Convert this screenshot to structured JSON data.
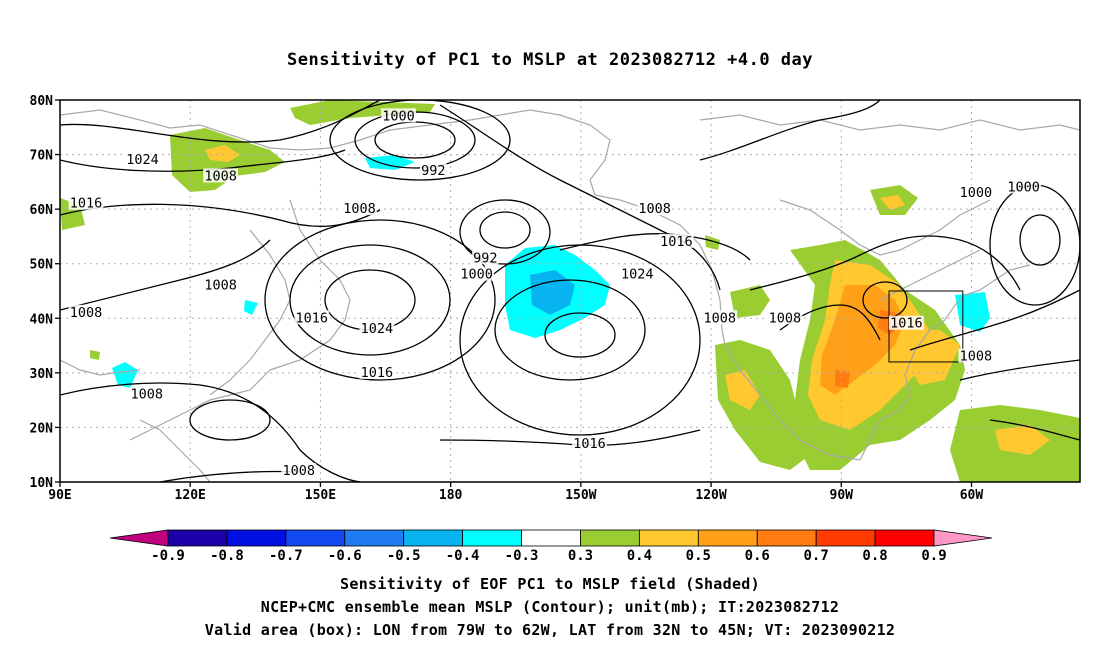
{
  "title": "Sensitivity of PC1 to MSLP at 2023082712 +4.0 day",
  "map": {
    "lat_labels": [
      "80N",
      "70N",
      "60N",
      "50N",
      "40N",
      "30N",
      "20N",
      "10N"
    ],
    "lon_labels": [
      "90E",
      "120E",
      "150E",
      "180",
      "150W",
      "120W",
      "90W",
      "60W"
    ],
    "lon_range_deg_east": [
      90,
      325
    ],
    "lat_range": [
      10,
      80
    ],
    "grid": "dotted",
    "coastline_color": "#a8a8a8",
    "valid_box": {
      "lon_west": "79W",
      "lon_east": "62W",
      "lat_south": "32N",
      "lat_north": "45N"
    },
    "contour_labels": [
      {
        "text": "1000",
        "lon": 168,
        "lat": 77
      },
      {
        "text": "992",
        "lon": 176,
        "lat": 67
      },
      {
        "text": "1024",
        "lon": 109,
        "lat": 69
      },
      {
        "text": "1008",
        "lon": 127,
        "lat": 66
      },
      {
        "text": "1016",
        "lon": 96,
        "lat": 61
      },
      {
        "text": "1008",
        "lon": 159,
        "lat": 60
      },
      {
        "text": "1008",
        "lon": 127,
        "lat": 46
      },
      {
        "text": "1008",
        "lon": 96,
        "lat": 41
      },
      {
        "text": "1016",
        "lon": 148,
        "lat": 40
      },
      {
        "text": "1024",
        "lon": 163,
        "lat": 38
      },
      {
        "text": "1016",
        "lon": 163,
        "lat": 30
      },
      {
        "text": "1008",
        "lon": 110,
        "lat": 26
      },
      {
        "text": "1008",
        "lon": 145,
        "lat": 12
      },
      {
        "text": "1008",
        "lon": 227,
        "lat": 60
      },
      {
        "text": "1016",
        "lon": 232,
        "lat": 54
      },
      {
        "text": "992",
        "lon": 188,
        "lat": 51
      },
      {
        "text": "1000",
        "lon": 186,
        "lat": 48
      },
      {
        "text": "1024",
        "lon": 223,
        "lat": 48
      },
      {
        "text": "1016",
        "lon": 212,
        "lat": 17
      },
      {
        "text": "1008",
        "lon": 242,
        "lat": 40
      },
      {
        "text": "1008",
        "lon": 257,
        "lat": 40
      },
      {
        "text": "1016",
        "lon": 285,
        "lat": 39
      },
      {
        "text": "1008",
        "lon": 301,
        "lat": 33
      },
      {
        "text": "1000",
        "lon": 301,
        "lat": 63
      },
      {
        "text": "1000",
        "lon": 312,
        "lat": 64
      }
    ]
  },
  "colorbar": {
    "labels": [
      "-0.9",
      "-0.8",
      "-0.7",
      "-0.6",
      "-0.5",
      "-0.4",
      "-0.3",
      "0.3",
      "0.4",
      "0.5",
      "0.6",
      "0.7",
      "0.8",
      "0.9"
    ],
    "colors": [
      "#c0007f",
      "#1e00a8",
      "#0010e0",
      "#1248f0",
      "#1e7cf0",
      "#08b4f0",
      "#00ffff",
      "#ffffff",
      "#9acd32",
      "#ffc830",
      "#ffa018",
      "#ff7c10",
      "#ff3c00",
      "#ff0000",
      "#ff98c8"
    ]
  },
  "captions": [
    "Sensitivity of EOF PC1 to MSLP field (Shaded)",
    "NCEP+CMC ensemble mean MSLP (Contour); unit(mb); IT:2023082712",
    "Valid area (box): LON from 79W to 62W, LAT from 32N to 45N; VT: 2023090212"
  ]
}
